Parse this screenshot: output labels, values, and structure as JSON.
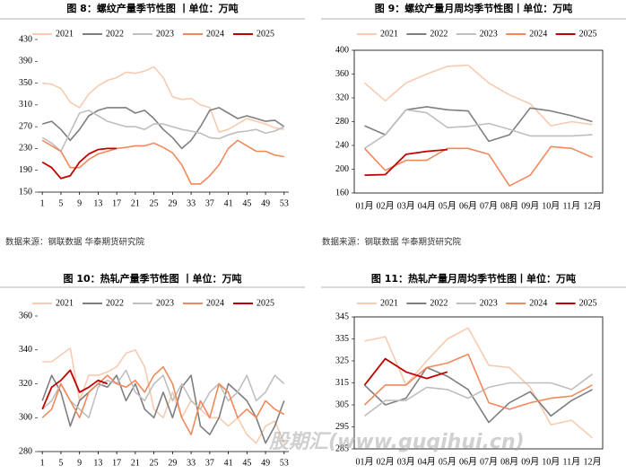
{
  "chart_data": [
    {
      "type": "line",
      "title": "图 8：螺纹产量季节性图 丨单位：万吨",
      "source": "数据来源：钢联数据 华泰期货研究院",
      "x": [
        1,
        3,
        5,
        7,
        9,
        11,
        13,
        15,
        17,
        19,
        21,
        23,
        25,
        27,
        29,
        31,
        33,
        35,
        37,
        39,
        41,
        43,
        45,
        47,
        49,
        51,
        53
      ],
      "xlim": [
        0,
        54
      ],
      "xticks": [
        1,
        5,
        9,
        13,
        17,
        21,
        25,
        29,
        33,
        37,
        41,
        45,
        49,
        53
      ],
      "ylim": [
        150,
        430
      ],
      "yticks": [
        150,
        190,
        230,
        270,
        310,
        350,
        390,
        430
      ],
      "frame": false,
      "series": [
        {
          "name": "2021",
          "color": "#f8cbb0",
          "values": [
            350,
            348,
            340,
            315,
            305,
            330,
            345,
            355,
            360,
            370,
            368,
            372,
            380,
            360,
            325,
            320,
            322,
            310,
            305,
            260,
            265,
            275,
            285,
            280,
            275,
            268,
            265
          ]
        },
        {
          "name": "2022",
          "color": "#7f7f7f",
          "values": [
            275,
            280,
            265,
            245,
            265,
            290,
            300,
            305,
            305,
            305,
            295,
            300,
            285,
            265,
            250,
            230,
            245,
            270,
            300,
            305,
            295,
            285,
            290,
            285,
            280,
            282,
            270
          ]
        },
        {
          "name": "2023",
          "color": "#bfbfbf",
          "values": [
            250,
            240,
            225,
            260,
            295,
            300,
            290,
            280,
            275,
            270,
            270,
            265,
            275,
            275,
            270,
            265,
            262,
            258,
            250,
            248,
            255,
            260,
            262,
            265,
            258,
            262,
            270
          ]
        },
        {
          "name": "2024",
          "color": "#f08a5d",
          "values": [
            245,
            235,
            225,
            195,
            195,
            210,
            220,
            225,
            230,
            232,
            235,
            235,
            240,
            232,
            222,
            200,
            165,
            165,
            180,
            200,
            230,
            245,
            235,
            225,
            225,
            218,
            215
          ]
        },
        {
          "name": "2025",
          "color": "#c00000",
          "values": [
            205,
            195,
            175,
            180,
            205,
            220,
            228,
            230,
            230,
            null,
            null,
            null,
            null,
            null,
            null,
            null,
            null,
            null,
            null,
            null,
            null,
            null,
            null,
            null,
            null,
            null,
            null
          ]
        }
      ]
    },
    {
      "type": "line",
      "title": "图 9：螺纹产量月周均季节性图丨单位：万吨",
      "source": "数据来源：钢联数据 华泰期货研究院",
      "categories": [
        "01月",
        "02月",
        "03月",
        "04月",
        "05月",
        "06月",
        "07月",
        "08月",
        "09月",
        "10月",
        "11月",
        "12月"
      ],
      "ylim": [
        160,
        400
      ],
      "yticks": [
        160,
        200,
        240,
        280,
        320,
        360,
        400
      ],
      "frame": true,
      "series": [
        {
          "name": "2021",
          "color": "#f8cbb0",
          "values": [
            345,
            315,
            345,
            360,
            373,
            375,
            345,
            325,
            310,
            273,
            280,
            275
          ]
        },
        {
          "name": "2022",
          "color": "#7f7f7f",
          "values": [
            273,
            258,
            300,
            305,
            300,
            298,
            247,
            258,
            303,
            298,
            290,
            280
          ]
        },
        {
          "name": "2023",
          "color": "#bfbfbf",
          "values": [
            235,
            258,
            300,
            295,
            270,
            272,
            277,
            267,
            256,
            256,
            256,
            258
          ]
        },
        {
          "name": "2024",
          "color": "#f08a5d",
          "values": [
            235,
            198,
            215,
            215,
            235,
            235,
            225,
            172,
            190,
            238,
            235,
            220
          ]
        },
        {
          "name": "2025",
          "color": "#c00000",
          "values": [
            190,
            191,
            225,
            230,
            233,
            null,
            null,
            null,
            null,
            null,
            null,
            null
          ]
        }
      ]
    },
    {
      "type": "line",
      "title": "图 10：热轧产量季节性图 丨单位：万吨",
      "x": [
        1,
        3,
        5,
        7,
        9,
        11,
        13,
        15,
        17,
        19,
        21,
        23,
        25,
        27,
        29,
        31,
        33,
        35,
        37,
        39,
        41,
        43,
        45,
        47,
        49,
        51,
        53
      ],
      "xlim": [
        0,
        54
      ],
      "xticks": [
        1,
        5,
        9,
        13,
        17,
        21,
        25,
        29,
        33,
        37,
        41,
        45,
        49,
        53
      ],
      "ylim": [
        280,
        360
      ],
      "yticks": [
        280,
        300,
        320,
        340,
        360
      ],
      "frame": false,
      "series": [
        {
          "name": "2021",
          "color": "#f8cbb0",
          "values": [
            333,
            333,
            337,
            341,
            310,
            325,
            325,
            327,
            330,
            338,
            340,
            330,
            305,
            300,
            315,
            300,
            310,
            305,
            300,
            300,
            295,
            300,
            290,
            285,
            295,
            298,
            285
          ]
        },
        {
          "name": "2022",
          "color": "#7f7f7f",
          "values": [
            310,
            325,
            315,
            295,
            310,
            315,
            320,
            318,
            325,
            310,
            320,
            305,
            300,
            315,
            300,
            318,
            325,
            295,
            290,
            300,
            320,
            315,
            310,
            300,
            285,
            295,
            310
          ]
        },
        {
          "name": "2023",
          "color": "#bfbfbf",
          "values": [
            305,
            310,
            320,
            310,
            305,
            300,
            318,
            322,
            320,
            328,
            315,
            310,
            320,
            325,
            310,
            320,
            310,
            305,
            315,
            320,
            310,
            315,
            325,
            310,
            315,
            325,
            320
          ]
        },
        {
          "name": "2024",
          "color": "#f08a5d",
          "values": [
            300,
            305,
            320,
            310,
            300,
            315,
            320,
            325,
            320,
            318,
            322,
            315,
            325,
            330,
            320,
            300,
            290,
            310,
            300,
            320,
            315,
            300,
            305,
            300,
            310,
            305,
            302
          ]
        },
        {
          "name": "2025",
          "color": "#c00000",
          "values": [
            305,
            318,
            322,
            328,
            315,
            318,
            322,
            320,
            null,
            null,
            null,
            null,
            null,
            null,
            null,
            null,
            null,
            null,
            null,
            null,
            null,
            null,
            null,
            null,
            null,
            null,
            null
          ]
        }
      ]
    },
    {
      "type": "line",
      "title": "图 11：热轧产量月周均季节性图丨单位：万吨",
      "categories": [
        "01月",
        "02月",
        "03月",
        "04月",
        "05月",
        "06月",
        "07月",
        "08月",
        "09月",
        "10月",
        "11月",
        "12月"
      ],
      "ylim": [
        285,
        345
      ],
      "yticks": [
        285,
        295,
        305,
        315,
        325,
        335,
        345
      ],
      "frame": true,
      "series": [
        {
          "name": "2021",
          "color": "#f8cbb0",
          "values": [
            334,
            336,
            314,
            325,
            335,
            340,
            323,
            322,
            313,
            296,
            298,
            290
          ]
        },
        {
          "name": "2022",
          "color": "#7f7f7f",
          "values": [
            314,
            305,
            308,
            322,
            318,
            312,
            297,
            306,
            311,
            300,
            307,
            312
          ]
        },
        {
          "name": "2023",
          "color": "#bfbfbf",
          "values": [
            300,
            307,
            307,
            313,
            312,
            308,
            313,
            315,
            315,
            315,
            312,
            319
          ]
        },
        {
          "name": "2024",
          "color": "#f08a5d",
          "values": [
            305,
            314,
            314,
            322,
            324,
            328,
            306,
            303,
            306,
            308,
            309,
            314
          ]
        },
        {
          "name": "2025",
          "color": "#c00000",
          "values": [
            314,
            326,
            320,
            317,
            320,
            null,
            null,
            null,
            null,
            null,
            null,
            null
          ]
        }
      ]
    }
  ],
  "watermark": "股期汇(www.guqihui.cn)"
}
